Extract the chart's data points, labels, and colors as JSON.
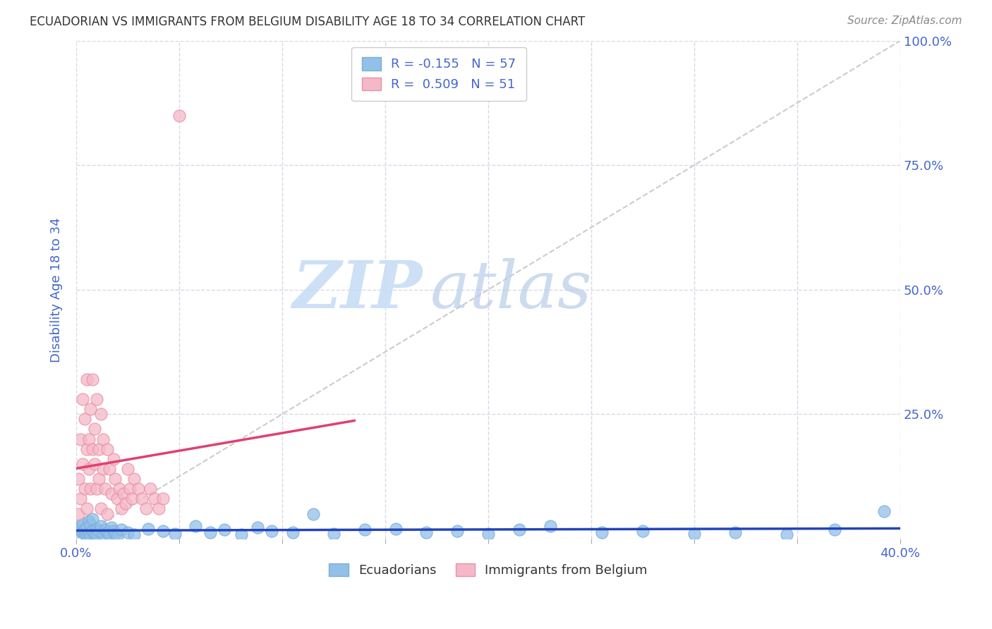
{
  "title": "ECUADORIAN VS IMMIGRANTS FROM BELGIUM DISABILITY AGE 18 TO 34 CORRELATION CHART",
  "source": "Source: ZipAtlas.com",
  "ylabel": "Disability Age 18 to 34",
  "xlim": [
    0.0,
    0.4
  ],
  "ylim": [
    0.0,
    1.0
  ],
  "grid_color": "#d8d8e8",
  "watermark_zip": "ZIP",
  "watermark_atlas": "atlas",
  "blue_color": "#92c0e8",
  "blue_color_edge": "#7aaed8",
  "pink_color": "#f5b8c8",
  "pink_color_edge": "#e890a8",
  "blue_line_color": "#2244bb",
  "pink_line_color": "#e04070",
  "axis_label_color": "#4466cc",
  "title_color": "#333333",
  "source_color": "#888888",
  "ecu_x": [
    0.001,
    0.002,
    0.002,
    0.003,
    0.003,
    0.004,
    0.004,
    0.005,
    0.005,
    0.006,
    0.006,
    0.007,
    0.007,
    0.008,
    0.008,
    0.009,
    0.01,
    0.01,
    0.011,
    0.012,
    0.013,
    0.014,
    0.015,
    0.016,
    0.017,
    0.018,
    0.019,
    0.02,
    0.022,
    0.025,
    0.028,
    0.035,
    0.042,
    0.048,
    0.058,
    0.065,
    0.072,
    0.08,
    0.088,
    0.095,
    0.105,
    0.115,
    0.125,
    0.14,
    0.155,
    0.17,
    0.185,
    0.2,
    0.215,
    0.23,
    0.255,
    0.275,
    0.3,
    0.32,
    0.345,
    0.368,
    0.392
  ],
  "ecu_y": [
    0.02,
    0.015,
    0.025,
    0.012,
    0.03,
    0.01,
    0.018,
    0.022,
    0.008,
    0.035,
    0.012,
    0.005,
    0.028,
    0.015,
    0.04,
    0.01,
    0.02,
    0.008,
    0.015,
    0.025,
    0.01,
    0.018,
    0.012,
    0.008,
    0.022,
    0.015,
    0.01,
    0.006,
    0.018,
    0.012,
    0.008,
    0.02,
    0.015,
    0.01,
    0.025,
    0.012,
    0.018,
    0.008,
    0.022,
    0.015,
    0.012,
    0.05,
    0.01,
    0.018,
    0.02,
    0.012,
    0.015,
    0.01,
    0.018,
    0.025,
    0.012,
    0.015,
    0.01,
    0.012,
    0.008,
    0.018,
    0.055
  ],
  "bel_x": [
    0.001,
    0.001,
    0.002,
    0.002,
    0.003,
    0.003,
    0.004,
    0.004,
    0.005,
    0.005,
    0.005,
    0.006,
    0.006,
    0.007,
    0.007,
    0.008,
    0.008,
    0.009,
    0.009,
    0.01,
    0.01,
    0.011,
    0.011,
    0.012,
    0.012,
    0.013,
    0.013,
    0.014,
    0.015,
    0.015,
    0.016,
    0.017,
    0.018,
    0.019,
    0.02,
    0.021,
    0.022,
    0.023,
    0.024,
    0.025,
    0.026,
    0.027,
    0.028,
    0.03,
    0.032,
    0.034,
    0.036,
    0.038,
    0.04,
    0.042,
    0.05
  ],
  "bel_y": [
    0.05,
    0.12,
    0.08,
    0.2,
    0.15,
    0.28,
    0.1,
    0.24,
    0.18,
    0.32,
    0.06,
    0.2,
    0.14,
    0.26,
    0.1,
    0.18,
    0.32,
    0.15,
    0.22,
    0.1,
    0.28,
    0.12,
    0.18,
    0.06,
    0.25,
    0.14,
    0.2,
    0.1,
    0.18,
    0.05,
    0.14,
    0.09,
    0.16,
    0.12,
    0.08,
    0.1,
    0.06,
    0.09,
    0.07,
    0.14,
    0.1,
    0.08,
    0.12,
    0.1,
    0.08,
    0.06,
    0.1,
    0.08,
    0.06,
    0.08,
    0.85
  ],
  "bel_line_x0": 0.0,
  "bel_line_x1": 0.135,
  "ecu_line_x0": 0.0,
  "ecu_line_x1": 0.4
}
